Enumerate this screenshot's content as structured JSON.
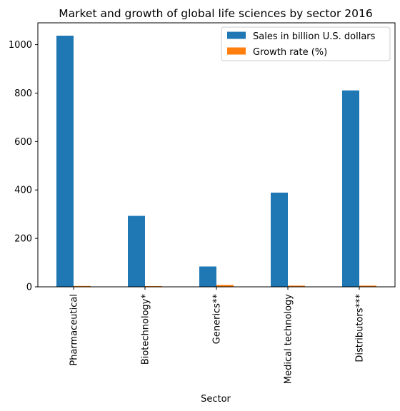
{
  "chart_data": {
    "type": "bar",
    "title": "Market and growth of global life sciences by sector 2016",
    "xlabel": "Sector",
    "ylabel": "",
    "categories": [
      "Pharmaceutical",
      "Biotechnology*",
      "Generics**",
      "Medical technology",
      "Distributors***"
    ],
    "series": [
      {
        "name": "Sales in billion U.S. dollars",
        "color": "#1f77b4",
        "values": [
          1037,
          293,
          84,
          389,
          811
        ]
      },
      {
        "name": "Growth rate (%)",
        "color": "#ff7f0e",
        "values": [
          3.5,
          3.0,
          7.9,
          5.0,
          5.0
        ]
      }
    ],
    "ylim": [
      0,
      1090
    ],
    "yticks": [
      0,
      200,
      400,
      600,
      800,
      1000
    ],
    "legend_position": "top-right",
    "grid": false
  }
}
